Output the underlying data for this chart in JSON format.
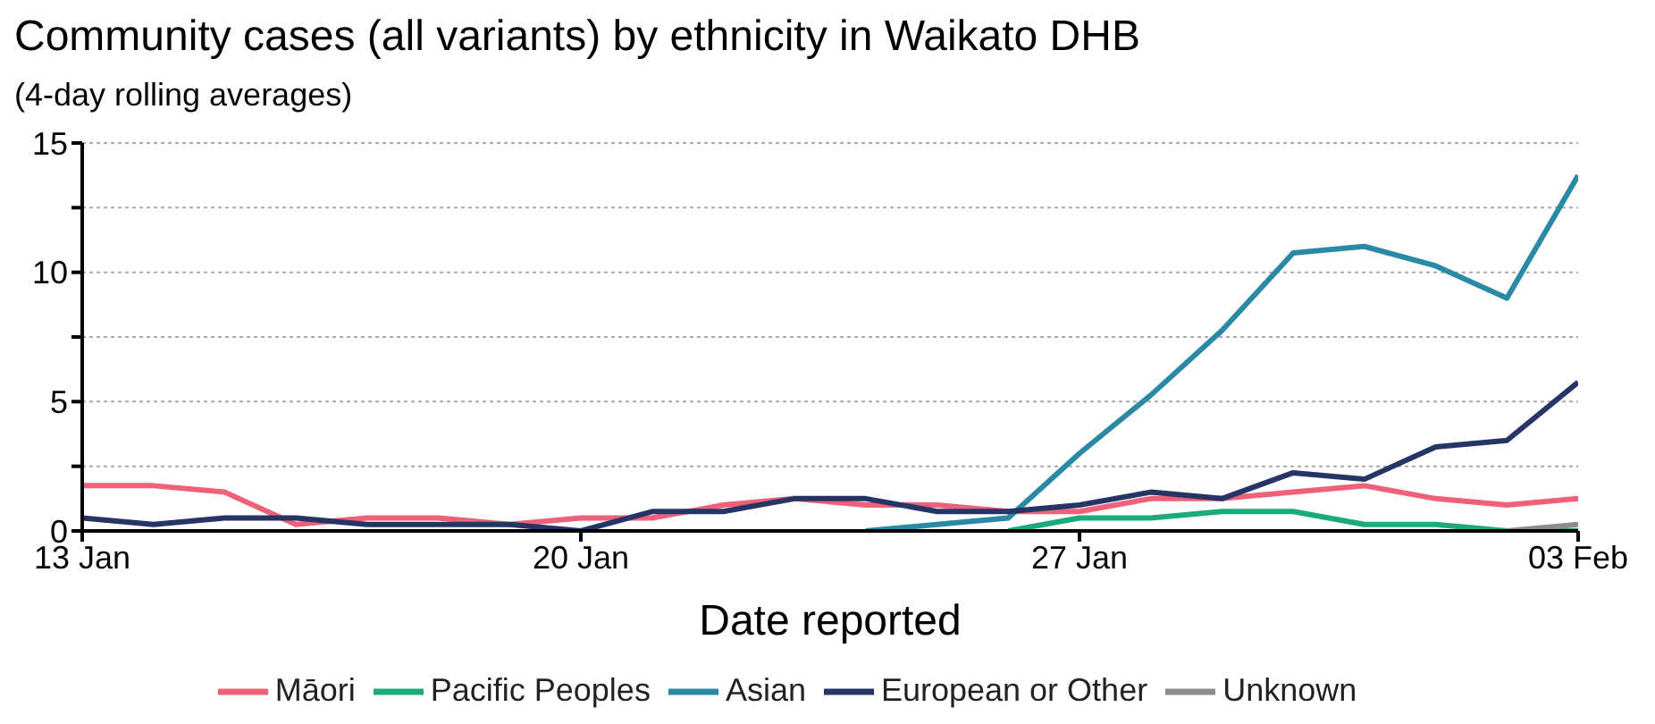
{
  "chart_data": {
    "type": "line",
    "title": "Community cases (all variants) by ethnicity in Waikato DHB",
    "subtitle": "(4-day rolling averages)",
    "xlabel": "Date reported",
    "x": [
      "--01-13",
      "--01-14",
      "--01-15",
      "--01-16",
      "--01-17",
      "--01-18",
      "--01-19",
      "--01-20",
      "--01-21",
      "--01-22",
      "--01-23",
      "--01-24",
      "--01-25",
      "--01-26",
      "--01-27",
      "--01-28",
      "--01-29",
      "--01-30",
      "--01-31",
      "--02-01",
      "--02-02",
      "--02-03"
    ],
    "series": [
      {
        "name": "Māori",
        "color": "#ef6079",
        "values": [
          1.75,
          1.75,
          1.5,
          0.25,
          0.5,
          0.5,
          0.25,
          0.5,
          0.5,
          1.0,
          1.25,
          1.0,
          1.0,
          0.75,
          0.75,
          1.25,
          1.25,
          1.5,
          1.75,
          1.25,
          1.0,
          1.25
        ]
      },
      {
        "name": "Pacific Peoples",
        "color": "#1aaa7b",
        "values": [
          null,
          null,
          null,
          null,
          null,
          null,
          null,
          null,
          null,
          null,
          null,
          null,
          null,
          0,
          0.5,
          0.5,
          0.75,
          0.75,
          0.25,
          0.25,
          0,
          0
        ]
      },
      {
        "name": "Asian",
        "color": "#2a8aa5",
        "values": [
          null,
          null,
          null,
          null,
          null,
          null,
          null,
          null,
          null,
          null,
          null,
          0,
          0.25,
          0.5,
          3.0,
          5.25,
          7.75,
          10.75,
          11.0,
          10.25,
          9.0,
          13.75
        ]
      },
      {
        "name": "European or Other",
        "color": "#263565",
        "values": [
          0.5,
          0.25,
          0.5,
          0.5,
          0.25,
          0.25,
          0.25,
          0,
          0.75,
          0.75,
          1.25,
          1.25,
          0.75,
          0.75,
          1.0,
          1.5,
          1.25,
          2.25,
          2.0,
          3.25,
          3.5,
          5.75
        ]
      },
      {
        "name": "Unknown",
        "color": "#8c8c8c",
        "values": [
          null,
          null,
          null,
          null,
          null,
          null,
          null,
          null,
          null,
          null,
          null,
          null,
          null,
          null,
          null,
          null,
          null,
          null,
          null,
          null,
          0,
          0.25
        ]
      }
    ],
    "xlim": [
      "--01-13",
      "--02-03"
    ],
    "xticks": [
      {
        "value": "--01-13",
        "label": "13 Jan"
      },
      {
        "value": "--01-20",
        "label": "20 Jan"
      },
      {
        "value": "--01-27",
        "label": "27 Jan"
      },
      {
        "value": "--02-03",
        "label": "03 Feb"
      }
    ],
    "ylim": [
      0,
      15
    ],
    "yticks": [
      0,
      {
        "value": 2.5,
        "label": null
      },
      5,
      {
        "value": 7.5,
        "label": null
      },
      10,
      {
        "value": 12.5,
        "label": null
      },
      15
    ],
    "grid": "y",
    "legend": "bottom",
    "marker": "none",
    "line_style": "solid"
  }
}
